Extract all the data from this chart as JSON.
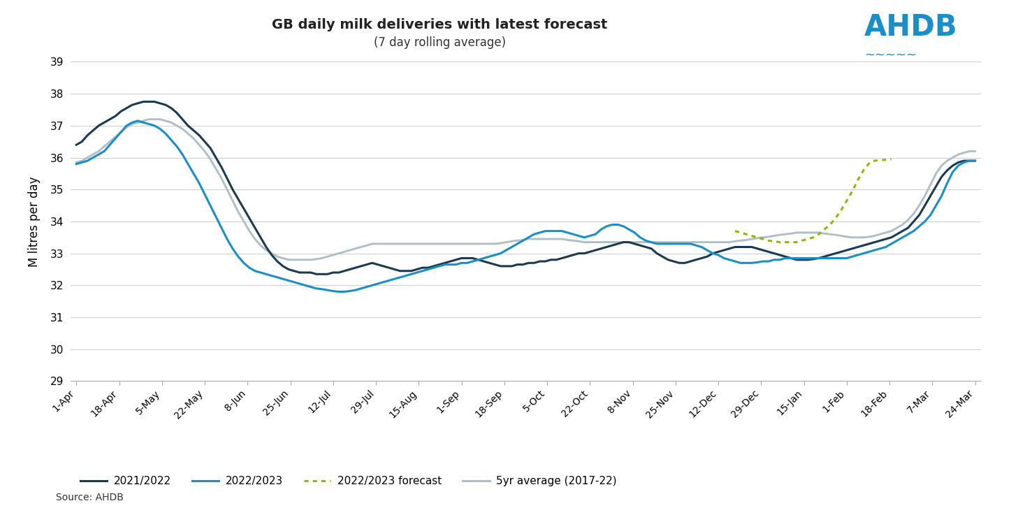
{
  "title": "GB daily milk deliveries with latest forecast",
  "subtitle": "(7 day rolling average)",
  "ylabel": "M litres per day",
  "source": "Source: AHDB",
  "ylim": [
    29,
    39
  ],
  "yticks": [
    29,
    30,
    31,
    32,
    33,
    34,
    35,
    36,
    37,
    38,
    39
  ],
  "x_labels": [
    "1-Apr",
    "18-Apr",
    "5-May",
    "22-May",
    "8-Jun",
    "25-Jun",
    "12-Jul",
    "29-Jul",
    "15-Aug",
    "1-Sep",
    "18-Sep",
    "5-Oct",
    "22-Oct",
    "8-Nov",
    "25-Nov",
    "12-Dec",
    "29-Dec",
    "15-Jan",
    "1-Feb",
    "18-Feb",
    "7-Mar",
    "24-Mar"
  ],
  "color_2021_2022": "#1b3a52",
  "color_2022_2023": "#1b8ec8",
  "color_forecast": "#8db800",
  "color_5yr_avg": "#b0bec5",
  "background_color": "#ffffff",
  "grid_color": "#d0d0d0",
  "series_2021_2022": [
    36.4,
    36.5,
    36.7,
    36.85,
    37.0,
    37.1,
    37.2,
    37.3,
    37.45,
    37.55,
    37.65,
    37.7,
    37.75,
    37.75,
    37.75,
    37.7,
    37.65,
    37.55,
    37.4,
    37.2,
    37.0,
    36.85,
    36.7,
    36.5,
    36.3,
    36.0,
    35.7,
    35.35,
    35.0,
    34.7,
    34.4,
    34.1,
    33.8,
    33.5,
    33.2,
    32.95,
    32.75,
    32.6,
    32.5,
    32.45,
    32.4,
    32.4,
    32.4,
    32.35,
    32.35,
    32.35,
    32.4,
    32.4,
    32.45,
    32.5,
    32.55,
    32.6,
    32.65,
    32.7,
    32.65,
    32.6,
    32.55,
    32.5,
    32.45,
    32.45,
    32.45,
    32.5,
    32.55,
    32.55,
    32.6,
    32.65,
    32.7,
    32.75,
    32.8,
    32.85,
    32.85,
    32.85,
    32.8,
    32.75,
    32.7,
    32.65,
    32.6,
    32.6,
    32.6,
    32.65,
    32.65,
    32.7,
    32.7,
    32.75,
    32.75,
    32.8,
    32.8,
    32.85,
    32.9,
    32.95,
    33.0,
    33.0,
    33.05,
    33.1,
    33.15,
    33.2,
    33.25,
    33.3,
    33.35,
    33.35,
    33.3,
    33.25,
    33.2,
    33.15,
    33.0,
    32.9,
    32.8,
    32.75,
    32.7,
    32.7,
    32.75,
    32.8,
    32.85,
    32.9,
    33.0,
    33.05,
    33.1,
    33.15,
    33.2,
    33.2,
    33.2,
    33.2,
    33.15,
    33.1,
    33.05,
    33.0,
    32.95,
    32.9,
    32.85,
    32.8,
    32.8,
    32.8,
    32.82,
    32.85,
    32.9,
    32.95,
    33.0,
    33.05,
    33.1,
    33.15,
    33.2,
    33.25,
    33.3,
    33.35,
    33.4,
    33.45,
    33.5,
    33.6,
    33.7,
    33.8,
    34.0,
    34.2,
    34.5,
    34.8,
    35.1,
    35.4,
    35.6,
    35.75,
    35.85,
    35.9,
    35.9,
    35.9
  ],
  "series_2022_2023": [
    35.8,
    35.85,
    35.9,
    36.0,
    36.1,
    36.2,
    36.4,
    36.6,
    36.8,
    37.0,
    37.1,
    37.15,
    37.1,
    37.05,
    37.0,
    36.9,
    36.75,
    36.55,
    36.35,
    36.1,
    35.8,
    35.5,
    35.2,
    34.85,
    34.5,
    34.15,
    33.8,
    33.45,
    33.15,
    32.9,
    32.7,
    32.55,
    32.45,
    32.4,
    32.35,
    32.3,
    32.25,
    32.2,
    32.15,
    32.1,
    32.05,
    32.0,
    31.95,
    31.9,
    31.88,
    31.85,
    31.82,
    31.8,
    31.8,
    31.82,
    31.85,
    31.9,
    31.95,
    32.0,
    32.05,
    32.1,
    32.15,
    32.2,
    32.25,
    32.3,
    32.35,
    32.4,
    32.45,
    32.5,
    32.55,
    32.6,
    32.65,
    32.65,
    32.65,
    32.7,
    32.7,
    32.75,
    32.8,
    32.85,
    32.9,
    32.95,
    33.0,
    33.1,
    33.2,
    33.3,
    33.4,
    33.5,
    33.6,
    33.65,
    33.7,
    33.7,
    33.7,
    33.7,
    33.65,
    33.6,
    33.55,
    33.5,
    33.55,
    33.6,
    33.75,
    33.85,
    33.9,
    33.9,
    33.85,
    33.75,
    33.65,
    33.5,
    33.4,
    33.35,
    33.3,
    33.3,
    33.3,
    33.3,
    33.3,
    33.3,
    33.3,
    33.25,
    33.2,
    33.1,
    33.0,
    32.95,
    32.85,
    32.8,
    32.75,
    32.7,
    32.7,
    32.7,
    32.72,
    32.75,
    32.75,
    32.8,
    32.8,
    32.85,
    32.85,
    32.85,
    32.85,
    32.85,
    32.85,
    32.85,
    32.85,
    32.85,
    32.85,
    32.85,
    32.85,
    32.9,
    32.95,
    33.0,
    33.05,
    33.1,
    33.15,
    33.2,
    33.3,
    33.4,
    33.5,
    33.6,
    33.7,
    33.85,
    34.0,
    34.2,
    34.5,
    34.8,
    35.2,
    35.55,
    35.75,
    35.85,
    35.9,
    35.9
  ],
  "series_forecast": [
    null,
    null,
    null,
    null,
    null,
    null,
    null,
    null,
    null,
    null,
    null,
    null,
    null,
    null,
    null,
    null,
    null,
    null,
    null,
    null,
    null,
    null,
    null,
    null,
    null,
    null,
    null,
    null,
    null,
    null,
    null,
    null,
    null,
    null,
    null,
    null,
    null,
    null,
    null,
    null,
    null,
    null,
    null,
    null,
    null,
    null,
    null,
    null,
    null,
    null,
    null,
    null,
    null,
    null,
    null,
    null,
    null,
    null,
    null,
    null,
    null,
    null,
    null,
    null,
    null,
    null,
    null,
    null,
    null,
    null,
    null,
    null,
    null,
    null,
    null,
    null,
    null,
    null,
    null,
    null,
    null,
    null,
    null,
    null,
    null,
    null,
    null,
    null,
    null,
    null,
    null,
    null,
    null,
    null,
    null,
    null,
    null,
    null,
    null,
    null,
    null,
    null,
    null,
    null,
    null,
    null,
    null,
    null,
    null,
    null,
    null,
    null,
    null,
    null,
    null,
    null,
    null,
    null,
    33.7,
    33.65,
    33.6,
    33.55,
    33.5,
    33.45,
    33.4,
    33.38,
    33.35,
    33.35,
    33.35,
    33.35,
    33.4,
    33.45,
    33.5,
    33.6,
    33.75,
    33.9,
    34.1,
    34.35,
    34.65,
    34.95,
    35.3,
    35.6,
    35.82,
    35.9,
    35.92,
    35.93,
    35.95,
    null,
    null,
    null
  ],
  "series_5yr_avg": [
    35.85,
    35.9,
    36.0,
    36.1,
    36.2,
    36.35,
    36.5,
    36.65,
    36.8,
    36.95,
    37.05,
    37.1,
    37.15,
    37.2,
    37.2,
    37.2,
    37.15,
    37.1,
    37.0,
    36.9,
    36.75,
    36.6,
    36.4,
    36.2,
    35.95,
    35.65,
    35.35,
    35.0,
    34.65,
    34.3,
    34.0,
    33.7,
    33.45,
    33.25,
    33.1,
    33.0,
    32.9,
    32.85,
    32.8,
    32.8,
    32.8,
    32.8,
    32.8,
    32.82,
    32.85,
    32.9,
    32.95,
    33.0,
    33.05,
    33.1,
    33.15,
    33.2,
    33.25,
    33.3,
    33.3,
    33.3,
    33.3,
    33.3,
    33.3,
    33.3,
    33.3,
    33.3,
    33.3,
    33.3,
    33.3,
    33.3,
    33.3,
    33.3,
    33.3,
    33.3,
    33.3,
    33.3,
    33.3,
    33.3,
    33.3,
    33.3,
    33.32,
    33.35,
    33.38,
    33.4,
    33.42,
    33.45,
    33.45,
    33.45,
    33.45,
    33.45,
    33.45,
    33.45,
    33.42,
    33.4,
    33.38,
    33.35,
    33.35,
    33.35,
    33.35,
    33.35,
    33.35,
    33.35,
    33.35,
    33.35,
    33.35,
    33.35,
    33.35,
    33.35,
    33.35,
    33.35,
    33.35,
    33.35,
    33.35,
    33.35,
    33.35,
    33.35,
    33.35,
    33.35,
    33.35,
    33.35,
    33.35,
    33.35,
    33.38,
    33.4,
    33.42,
    33.45,
    33.48,
    33.5,
    33.52,
    33.55,
    33.58,
    33.6,
    33.62,
    33.65,
    33.65,
    33.65,
    33.65,
    33.65,
    33.62,
    33.6,
    33.58,
    33.55,
    33.52,
    33.5,
    33.5,
    33.5,
    33.52,
    33.55,
    33.6,
    33.65,
    33.7,
    33.8,
    33.9,
    34.05,
    34.25,
    34.5,
    34.8,
    35.15,
    35.5,
    35.75,
    35.9,
    36.0,
    36.1,
    36.15,
    36.2,
    36.2
  ],
  "n_points": 162
}
